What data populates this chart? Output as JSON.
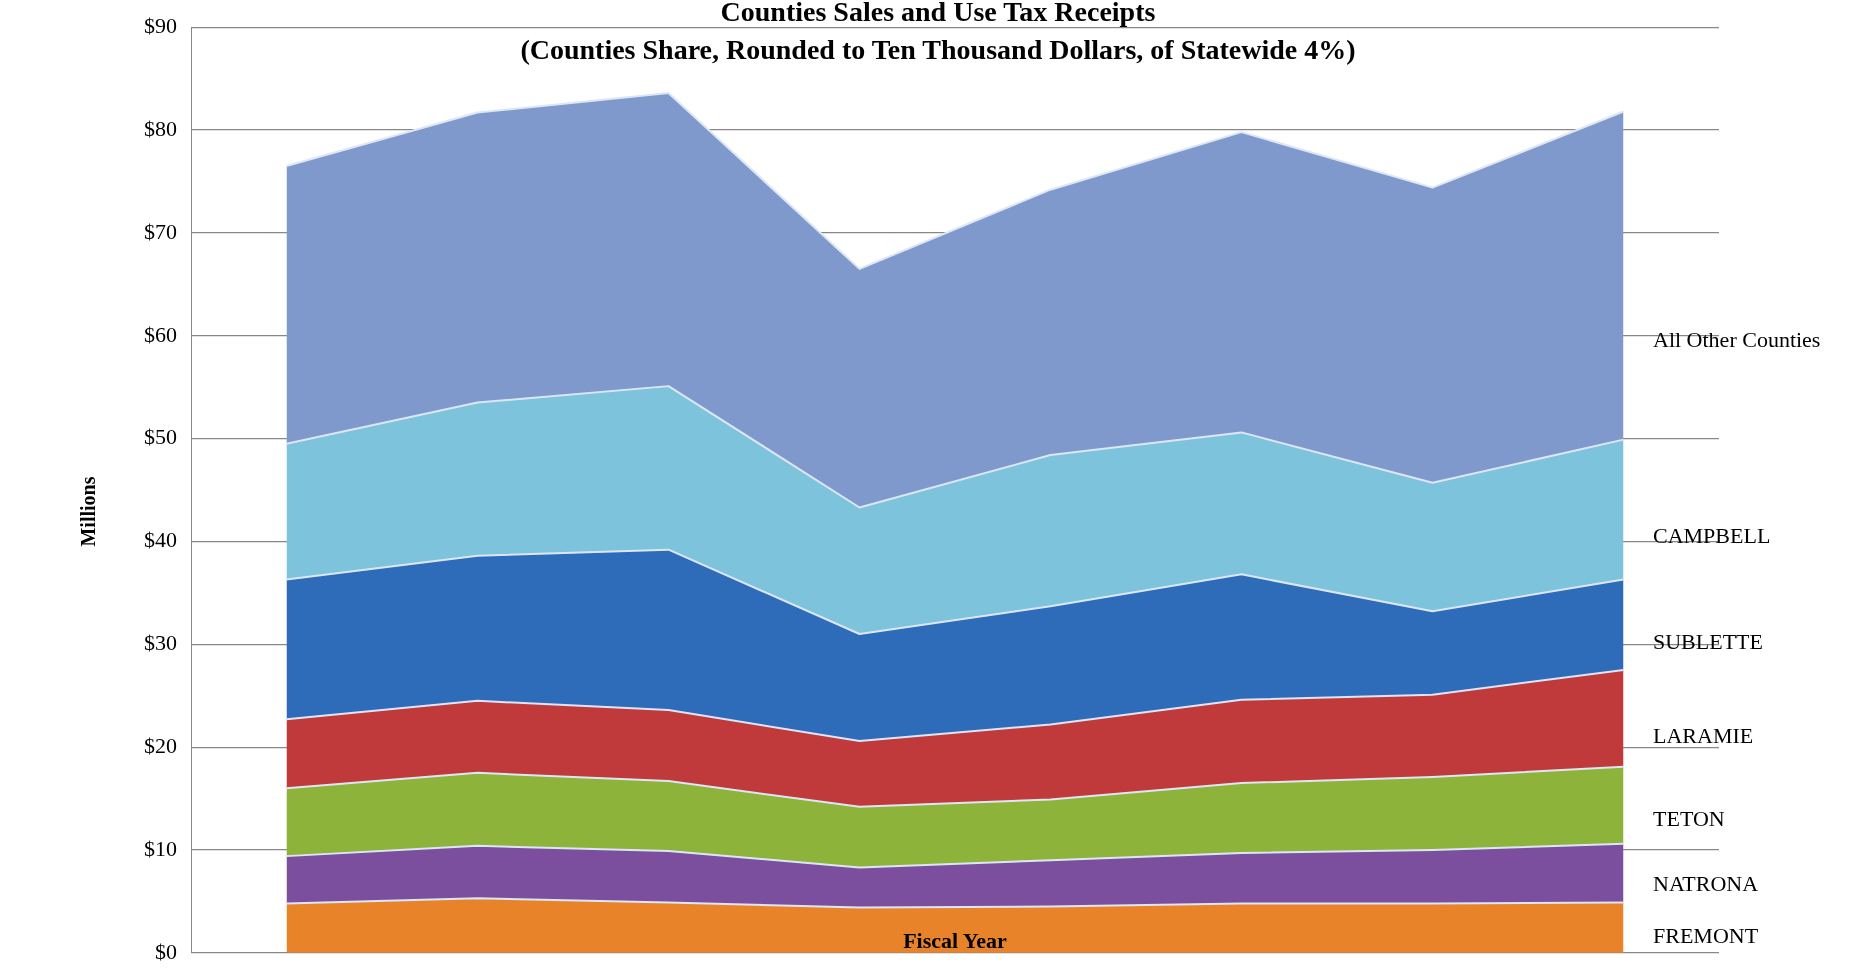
{
  "chart_data": {
    "type": "area",
    "stacked": true,
    "title": "Counties Sales and Use Tax Receipts",
    "subtitle": "(Counties Share, Rounded to Ten Thousand Dollars, of Statewide 4%)",
    "xlabel": "Fiscal Year",
    "ylabel": "Millions",
    "categories": [
      null,
      null,
      null,
      null,
      null,
      null,
      null,
      null
    ],
    "series": [
      {
        "name": "FREMONT",
        "color": "#e8832a",
        "values": [
          4.8,
          5.3,
          4.9,
          4.4,
          4.5,
          4.8,
          4.8,
          4.9
        ]
      },
      {
        "name": "NATRONA",
        "color": "#7b4f9e",
        "values": [
          4.6,
          5.1,
          5.0,
          3.9,
          4.5,
          4.9,
          5.2,
          5.7
        ]
      },
      {
        "name": "TETON",
        "color": "#8db33a",
        "values": [
          6.6,
          7.1,
          6.8,
          5.9,
          5.9,
          6.8,
          7.1,
          7.5
        ]
      },
      {
        "name": "LARAMIE",
        "color": "#c0393b",
        "values": [
          6.7,
          7.0,
          6.9,
          6.4,
          7.3,
          8.1,
          8.0,
          9.4
        ]
      },
      {
        "name": "SUBLETTE",
        "color": "#2e6bb8",
        "values": [
          13.6,
          14.1,
          15.6,
          10.4,
          11.5,
          12.2,
          8.1,
          8.8
        ]
      },
      {
        "name": "CAMPBELL",
        "color": "#7ec3dc",
        "values": [
          13.2,
          14.9,
          15.9,
          12.3,
          14.7,
          13.8,
          12.5,
          13.6
        ]
      },
      {
        "name": "All Other Counties",
        "color": "#8099cc",
        "values": [
          27.0,
          28.2,
          28.5,
          23.2,
          25.8,
          29.2,
          28.7,
          31.9
        ]
      }
    ],
    "ylim": [
      0,
      90
    ],
    "yticks": [
      {
        "value": 0,
        "label": "$0"
      },
      {
        "value": 10,
        "label": "$10"
      },
      {
        "value": 20,
        "label": "$20"
      },
      {
        "value": 30,
        "label": "$30"
      },
      {
        "value": 40,
        "label": "$40"
      },
      {
        "value": 50,
        "label": "$50"
      },
      {
        "value": 60,
        "label": "$60"
      },
      {
        "value": 70,
        "label": "$70"
      },
      {
        "value": 80,
        "label": "$80"
      },
      {
        "value": 90,
        "label": "$90"
      }
    ],
    "grid": "y",
    "legend": false,
    "tick_labels": "y"
  }
}
